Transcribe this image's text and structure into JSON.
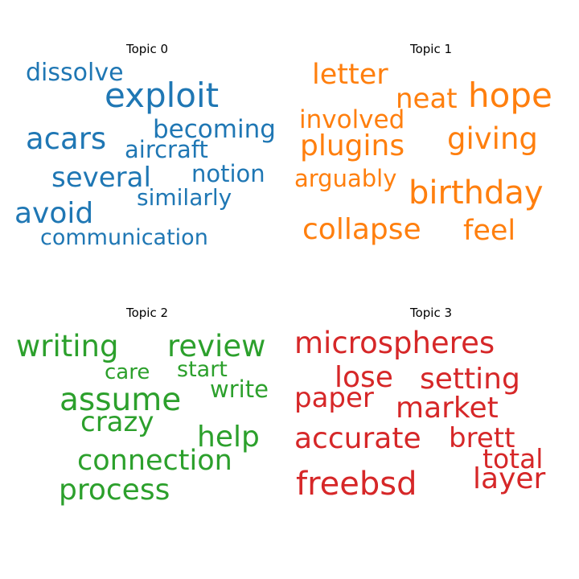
{
  "panels": [
    {
      "title": "Topic 0",
      "color": "#1f77b4",
      "words": [
        "dissolve",
        "exploit",
        "becoming",
        "acars",
        "aircraft",
        "several",
        "notion",
        "similarly",
        "avoid",
        "communication"
      ]
    },
    {
      "title": "Topic 1",
      "color": "#ff7f0e",
      "words": [
        "letter",
        "neat",
        "hope",
        "involved",
        "plugins",
        "giving",
        "arguably",
        "birthday",
        "collapse",
        "feel"
      ]
    },
    {
      "title": "Topic 2",
      "color": "#2ca02c",
      "words": [
        "writing",
        "review",
        "care",
        "start",
        "write",
        "assume",
        "crazy",
        "help",
        "connection",
        "process"
      ]
    },
    {
      "title": "Topic 3",
      "color": "#d62728",
      "words": [
        "microspheres",
        "lose",
        "setting",
        "paper",
        "market",
        "accurate",
        "brett",
        "total",
        "freebsd",
        "layer"
      ]
    }
  ]
}
